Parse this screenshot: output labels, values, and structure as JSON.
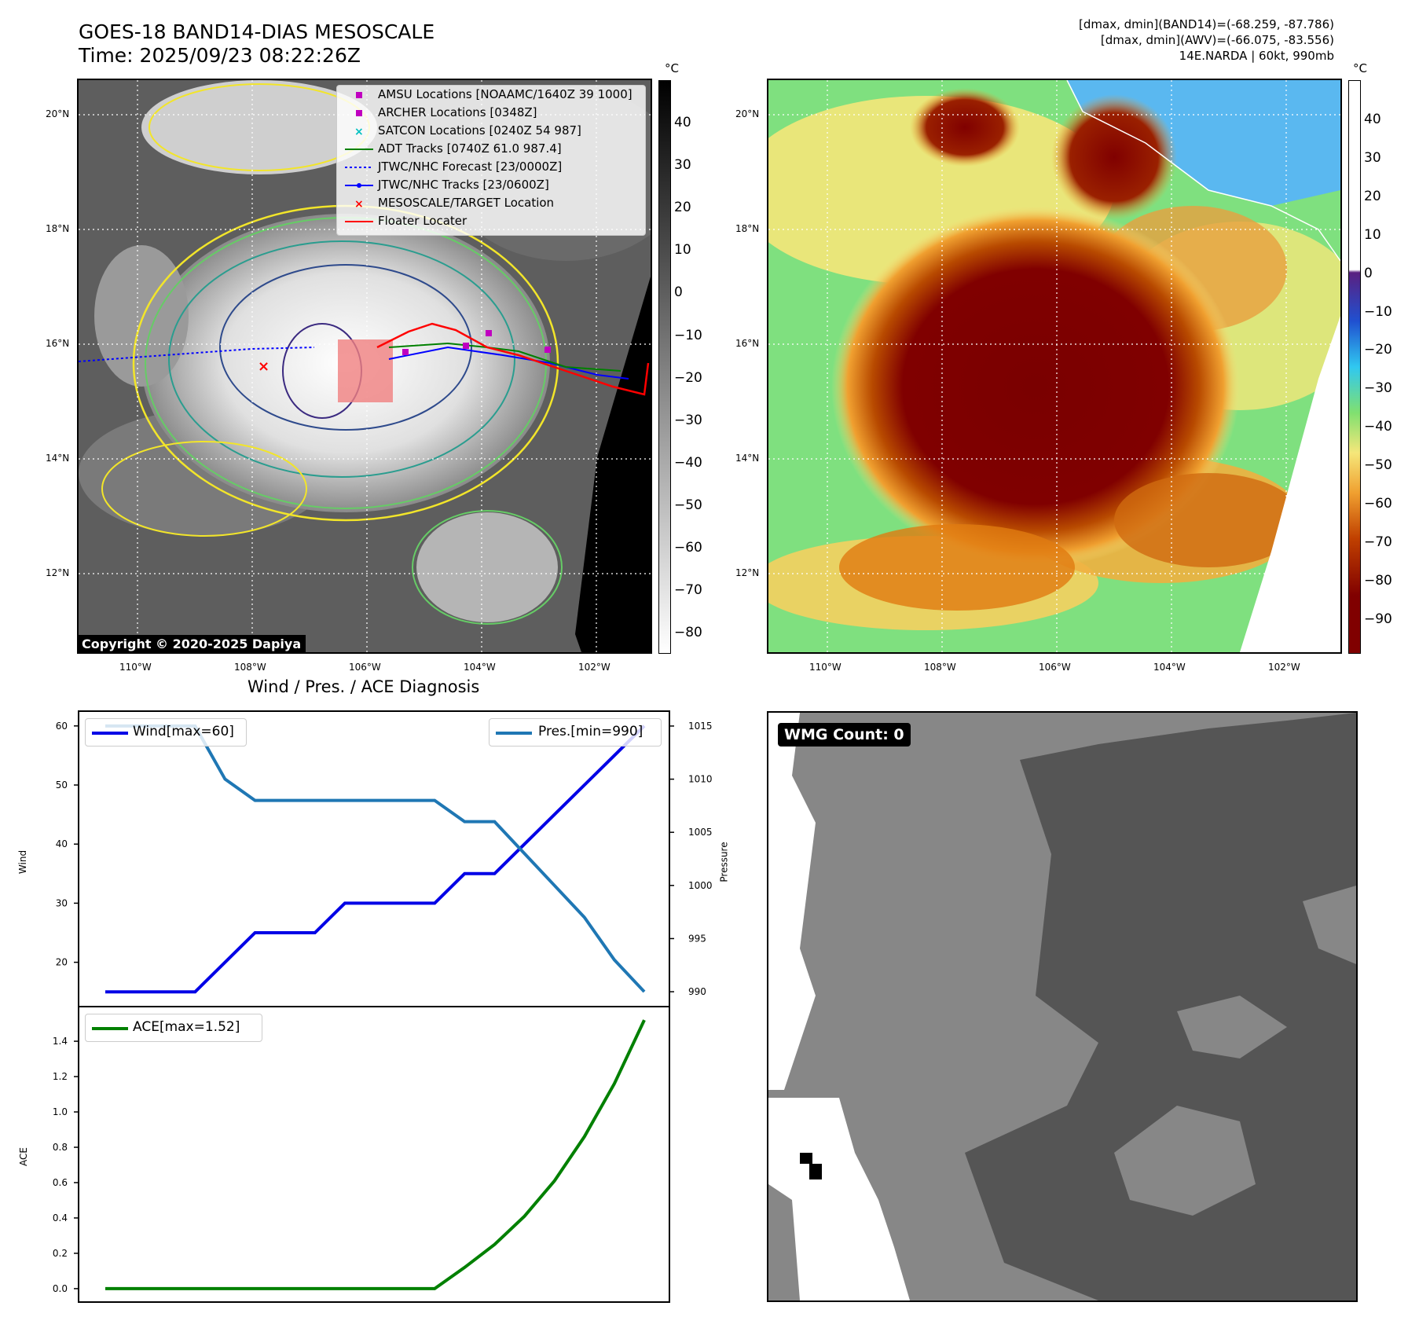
{
  "header": {
    "title": "GOES-18 BAND14-DIAS MESOSCALE",
    "time": "Time: 2025/09/23 08:22:26Z",
    "info_line1": "[dmax, dmin](BAND14)=(-68.259, -87.786)",
    "info_line2": "[dmax, dmin](AWV)=(-66.075, -83.556)",
    "info_line3": "14E.NARDA | 60kt, 990mb"
  },
  "maps": {
    "lat_labels": [
      "20°N",
      "18°N",
      "16°N",
      "14°N",
      "12°N"
    ],
    "lon_labels": [
      "110°W",
      "108°W",
      "106°W",
      "104°W",
      "102°W"
    ],
    "colorbar_unit": "°C",
    "ir_colorbar_ticks": [
      "40",
      "30",
      "20",
      "10",
      "0",
      "−10",
      "−20",
      "−30",
      "−40",
      "−50",
      "−60",
      "−70",
      "−80"
    ],
    "color_colorbar_ticks": [
      "40",
      "30",
      "20",
      "10",
      "0",
      "−10",
      "−20",
      "−30",
      "−40",
      "−50",
      "−60",
      "−70",
      "−80",
      "−90"
    ],
    "copyright": "Copyright © 2020-2025 Dapiya",
    "legend": [
      {
        "label": "AMSU Locations [NOAAMC/1640Z 39 1000]",
        "symbol": "square",
        "color": "#c000c0"
      },
      {
        "label": "ARCHER Locations [0348Z]",
        "symbol": "square",
        "color": "#c000c0"
      },
      {
        "label": "SATCON Locations [0240Z 54 987]",
        "symbol": "x",
        "color": "#00c0c0"
      },
      {
        "label": "ADT Tracks [0740Z 61.0 987.4]",
        "symbol": "line",
        "color": "#008000"
      },
      {
        "label": "JTWC/NHC Forecast [23/0000Z]",
        "symbol": "dotted",
        "color": "#0000ff"
      },
      {
        "label": "JTWC/NHC Tracks [23/0600Z]",
        "symbol": "linedot",
        "color": "#0000ff"
      },
      {
        "label": "MESOSCALE/TARGET Location",
        "symbol": "x",
        "color": "#ff0000"
      },
      {
        "label": "Floater Locater",
        "symbol": "line",
        "color": "#ff0000"
      }
    ]
  },
  "diagnosis": {
    "title": "Wind / Pres. / ACE Diagnosis",
    "wind_ylabel": "Wind",
    "pres_ylabel": "Pressure",
    "ace_ylabel": "ACE",
    "wind_legend": "Wind[max=60]",
    "pres_legend": "Pres.[min=990]",
    "ace_legend": "ACE[max=1.52]"
  },
  "wmg": {
    "label": "WMG Count: 0"
  },
  "chart_data": [
    {
      "type": "line",
      "title": "Wind / Pres. / ACE Diagnosis",
      "x": [
        0,
        1,
        2,
        3,
        4,
        5,
        6,
        7,
        8,
        9,
        10,
        11,
        12,
        13,
        14,
        15,
        16,
        17,
        18
      ],
      "series": [
        {
          "name": "Wind[max=60]",
          "axis": "left",
          "color": "#0000e6",
          "values": [
            15,
            15,
            15,
            15,
            20,
            25,
            25,
            25,
            30,
            30,
            30,
            30,
            35,
            35,
            40,
            45,
            50,
            55,
            60
          ]
        },
        {
          "name": "Pres.[min=990]",
          "axis": "right",
          "color": "#1f77b4",
          "values": [
            1015,
            1015,
            1015,
            1015,
            1010,
            1008,
            1008,
            1008,
            1008,
            1008,
            1008,
            1008,
            1006,
            1006,
            1003,
            1000,
            997,
            993,
            990
          ]
        }
      ],
      "ylabel": "Wind",
      "y2label": "Pressure",
      "yticks": [
        20,
        30,
        40,
        50,
        60
      ],
      "y2ticks": [
        990,
        995,
        1000,
        1005,
        1010,
        1015
      ],
      "ylim": [
        12.5,
        62.5
      ],
      "y2lim": [
        988.6,
        1016.4
      ]
    },
    {
      "type": "line",
      "x": [
        0,
        1,
        2,
        3,
        4,
        5,
        6,
        7,
        8,
        9,
        10,
        11,
        12,
        13,
        14,
        15,
        16,
        17,
        18
      ],
      "series": [
        {
          "name": "ACE[max=1.52]",
          "color": "#008000",
          "values": [
            0,
            0,
            0,
            0,
            0,
            0,
            0,
            0,
            0,
            0,
            0,
            0,
            0.12,
            0.25,
            0.41,
            0.61,
            0.86,
            1.16,
            1.52
          ]
        }
      ],
      "ylabel": "ACE",
      "yticks": [
        0.0,
        0.2,
        0.4,
        0.6,
        0.8,
        1.0,
        1.2,
        1.4
      ],
      "ylim": [
        -0.076,
        1.596
      ]
    }
  ]
}
